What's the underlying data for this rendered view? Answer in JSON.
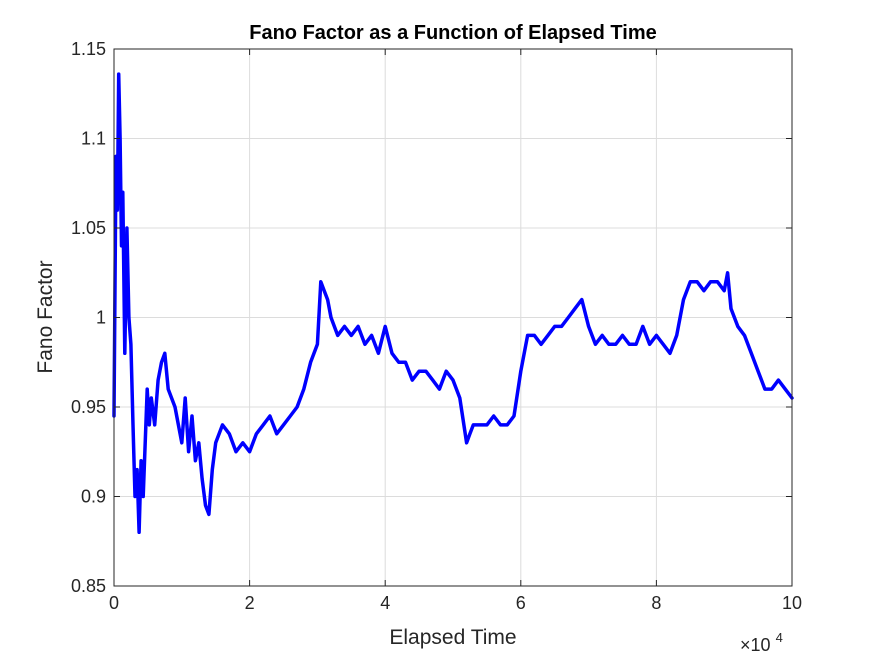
{
  "chart_data": {
    "type": "line",
    "title": "Fano Factor as a Function of Elapsed Time",
    "xlabel": "Elapsed Time",
    "ylabel": "Fano Factor",
    "x_exponent_label_base": "×10",
    "x_exponent_label_power": "4",
    "xlim": [
      0,
      10
    ],
    "ylim": [
      0.85,
      1.15
    ],
    "xticks": [
      "0",
      "2",
      "4",
      "6",
      "8",
      "10"
    ],
    "yticks": [
      "0.85",
      "0.9",
      "0.95",
      "1",
      "1.05",
      "1.1",
      "1.15"
    ],
    "grid": true,
    "line_color": "#0000ff",
    "series": [
      {
        "x": [
          0.0,
          0.03,
          0.05,
          0.07,
          0.09,
          0.11,
          0.13,
          0.16,
          0.19,
          0.22,
          0.25,
          0.28,
          0.31,
          0.34,
          0.37,
          0.4,
          0.43,
          0.46,
          0.49,
          0.52,
          0.55,
          0.6,
          0.65,
          0.7,
          0.75,
          0.8,
          0.9,
          1.0,
          1.05,
          1.1,
          1.15,
          1.2,
          1.25,
          1.3,
          1.35,
          1.4,
          1.45,
          1.5,
          1.6,
          1.7,
          1.8,
          1.9,
          2.0,
          2.1,
          2.2,
          2.3,
          2.4,
          2.5,
          2.6,
          2.7,
          2.8,
          2.9,
          3.0,
          3.05,
          3.1,
          3.15,
          3.2,
          3.3,
          3.4,
          3.5,
          3.6,
          3.7,
          3.8,
          3.9,
          4.0,
          4.1,
          4.2,
          4.3,
          4.4,
          4.5,
          4.6,
          4.7,
          4.8,
          4.9,
          5.0,
          5.1,
          5.2,
          5.25,
          5.3,
          5.4,
          5.5,
          5.6,
          5.7,
          5.8,
          5.9,
          6.0,
          6.1,
          6.2,
          6.3,
          6.4,
          6.5,
          6.6,
          6.7,
          6.8,
          6.9,
          7.0,
          7.1,
          7.2,
          7.3,
          7.4,
          7.5,
          7.6,
          7.7,
          7.8,
          7.9,
          8.0,
          8.1,
          8.2,
          8.3,
          8.4,
          8.5,
          8.6,
          8.7,
          8.8,
          8.9,
          9.0,
          9.05,
          9.1,
          9.2,
          9.3,
          9.4,
          9.5,
          9.6,
          9.7,
          9.8,
          9.9,
          10.0
        ],
        "y": [
          0.945,
          1.09,
          1.06,
          1.136,
          1.1,
          1.04,
          1.07,
          0.98,
          1.05,
          1.0,
          0.985,
          0.94,
          0.9,
          0.915,
          0.88,
          0.92,
          0.9,
          0.93,
          0.96,
          0.94,
          0.955,
          0.94,
          0.965,
          0.975,
          0.98,
          0.96,
          0.95,
          0.93,
          0.955,
          0.925,
          0.945,
          0.92,
          0.93,
          0.91,
          0.895,
          0.89,
          0.915,
          0.93,
          0.94,
          0.935,
          0.925,
          0.93,
          0.925,
          0.935,
          0.94,
          0.945,
          0.935,
          0.94,
          0.945,
          0.95,
          0.96,
          0.975,
          0.985,
          1.02,
          1.015,
          1.01,
          1.0,
          0.99,
          0.995,
          0.99,
          0.995,
          0.985,
          0.99,
          0.98,
          0.995,
          0.98,
          0.975,
          0.975,
          0.965,
          0.97,
          0.97,
          0.965,
          0.96,
          0.97,
          0.965,
          0.955,
          0.93,
          0.935,
          0.94,
          0.94,
          0.94,
          0.945,
          0.94,
          0.94,
          0.945,
          0.97,
          0.99,
          0.99,
          0.985,
          0.99,
          0.995,
          0.995,
          1.0,
          1.005,
          1.01,
          0.995,
          0.985,
          0.99,
          0.985,
          0.985,
          0.99,
          0.985,
          0.985,
          0.995,
          0.985,
          0.99,
          0.985,
          0.98,
          0.99,
          1.01,
          1.02,
          1.02,
          1.015,
          1.02,
          1.02,
          1.015,
          1.025,
          1.005,
          0.995,
          0.99,
          0.98,
          0.97,
          0.96,
          0.96,
          0.965,
          0.96,
          0.955
        ]
      }
    ]
  }
}
